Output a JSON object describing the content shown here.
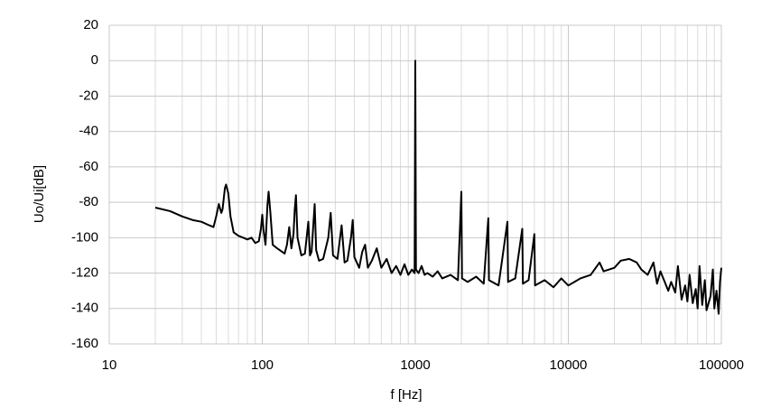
{
  "chart_data": {
    "type": "line",
    "x_label": "f [Hz]",
    "y_label": "Uo/Ui[dB]",
    "log_x": true,
    "grid": true,
    "color": "#000000",
    "xlim": [
      10,
      100000
    ],
    "xticks": [
      10,
      100,
      1000,
      10000,
      100000
    ],
    "ylim": [
      -160,
      20
    ],
    "yticks": [
      20,
      0,
      -20,
      -40,
      -60,
      -80,
      -100,
      -120,
      -140,
      -160
    ],
    "x": [
      20,
      25,
      30,
      35,
      40,
      45,
      48,
      50,
      52,
      54,
      55,
      57,
      58,
      60,
      62,
      65,
      70,
      75,
      80,
      85,
      90,
      95,
      98,
      100,
      102,
      105,
      108,
      110,
      113,
      117,
      125,
      140,
      145,
      150,
      155,
      160,
      163,
      166,
      170,
      180,
      190,
      200,
      205,
      210,
      220,
      225,
      235,
      250,
      270,
      280,
      290,
      310,
      330,
      345,
      360,
      380,
      390,
      400,
      430,
      450,
      470,
      490,
      520,
      560,
      600,
      650,
      700,
      750,
      800,
      850,
      900,
      950,
      990,
      1000,
      1010,
      1050,
      1100,
      1150,
      1200,
      1300,
      1400,
      1500,
      1700,
      1900,
      2000,
      2020,
      2200,
      2500,
      2800,
      3000,
      3030,
      3500,
      4000,
      4040,
      4500,
      5000,
      5050,
      5500,
      6000,
      6060,
      7000,
      8000,
      9000,
      10000,
      12000,
      14000,
      16000,
      17000,
      20000,
      22000,
      25000,
      28000,
      30000,
      33000,
      36000,
      38000,
      40000,
      45000,
      47000,
      50000,
      52000,
      55000,
      58000,
      60000,
      62000,
      65000,
      68000,
      70000,
      72000,
      75000,
      78000,
      80000,
      85000,
      88000,
      90000,
      93000,
      96000,
      98000,
      100000
    ],
    "values": [
      -83,
      -85,
      -88,
      -90,
      -91,
      -93,
      -94,
      -88,
      -81,
      -86,
      -84,
      -72,
      -70,
      -75,
      -88,
      -97,
      -99,
      -100,
      -101,
      -100,
      -103,
      -102,
      -95,
      -87,
      -96,
      -104,
      -82,
      -74,
      -86,
      -104,
      -106,
      -109,
      -104,
      -94,
      -106,
      -98,
      -84,
      -76,
      -100,
      -110,
      -109,
      -91,
      -110,
      -108,
      -81,
      -107,
      -113,
      -112,
      -100,
      -86,
      -110,
      -112,
      -93,
      -114,
      -113,
      -100,
      -90,
      -111,
      -117,
      -108,
      -104,
      -117,
      -113,
      -106,
      -117,
      -112,
      -120,
      -116,
      -121,
      -115,
      -121,
      -118,
      -120,
      0,
      -118,
      -120,
      -116,
      -121,
      -120,
      -122,
      -119,
      -123,
      -121,
      -124,
      -74,
      -123,
      -125,
      -122,
      -126,
      -89,
      -124,
      -127,
      -91,
      -125,
      -123,
      -95,
      -126,
      -124,
      -98,
      -127,
      -124,
      -128,
      -123,
      -127,
      -123,
      -121,
      -114,
      -119,
      -117,
      -113,
      -112,
      -114,
      -118,
      -121,
      -114,
      -126,
      -119,
      -130,
      -125,
      -131,
      -116,
      -135,
      -127,
      -136,
      -121,
      -137,
      -129,
      -140,
      -116,
      -138,
      -124,
      -141,
      -133,
      -118,
      -140,
      -130,
      -143,
      -125,
      -117
    ]
  }
}
